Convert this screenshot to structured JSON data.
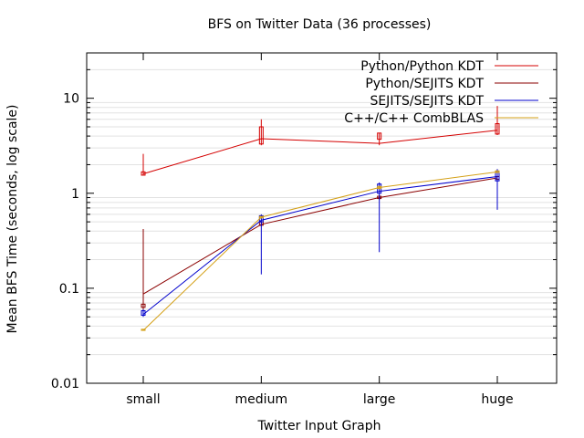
{
  "chart_data": {
    "type": "line",
    "title": "BFS on Twitter Data (36 processes)",
    "xlabel": "Twitter Input Graph",
    "ylabel": "Mean BFS Time (seconds, log scale)",
    "categories": [
      "small",
      "medium",
      "large",
      "huge"
    ],
    "yscale": "log",
    "ylim": [
      0.01,
      30
    ],
    "yticks": [
      0.01,
      0.1,
      1,
      10
    ],
    "ytick_labels": [
      "0.01",
      "0.1",
      "1",
      "10"
    ],
    "grid": "horizontal minor lines",
    "legend_position": "top-right",
    "series": [
      {
        "name": "Python/Python KDT",
        "color": "#d40000",
        "values": [
          1.6,
          3.75,
          3.35,
          4.6
        ],
        "err_low": [
          1.55,
          3.2,
          3.2,
          4.1
        ],
        "err_high": [
          2.6,
          6.0,
          4.3,
          8.3
        ],
        "box_low": [
          1.55,
          3.3,
          3.7,
          4.2
        ],
        "box_high": [
          1.68,
          5.0,
          4.3,
          5.4
        ]
      },
      {
        "name": "Python/SEJITS KDT",
        "color": "#8b0000",
        "values": [
          0.087,
          0.47,
          0.9,
          1.45
        ],
        "err_low": [
          0.06,
          0.45,
          0.85,
          1.35
        ],
        "err_high": [
          0.42,
          0.5,
          0.95,
          1.55
        ],
        "box_low": [
          0.063,
          0.46,
          0.88,
          1.4
        ],
        "box_high": [
          0.068,
          0.5,
          0.93,
          1.5
        ]
      },
      {
        "name": "SEJITS/SEJITS KDT",
        "color": "#0000cc",
        "values": [
          0.053,
          0.52,
          1.05,
          1.5
        ],
        "err_low": [
          0.05,
          0.14,
          0.24,
          0.67
        ],
        "err_high": [
          0.06,
          0.6,
          1.3,
          1.8
        ],
        "box_low": [
          0.052,
          0.5,
          1.0,
          1.35
        ],
        "box_high": [
          0.058,
          0.58,
          1.25,
          1.7
        ]
      },
      {
        "name": "C++/C++ CombBLAS",
        "color": "#d4a017",
        "values": [
          0.036,
          0.56,
          1.15,
          1.68
        ],
        "err_low": [
          0.036,
          0.55,
          1.12,
          1.65
        ],
        "err_high": [
          0.037,
          0.57,
          1.18,
          1.72
        ],
        "box_low": [
          0.036,
          0.55,
          1.12,
          1.65
        ],
        "box_high": [
          0.037,
          0.57,
          1.18,
          1.72
        ]
      }
    ]
  }
}
